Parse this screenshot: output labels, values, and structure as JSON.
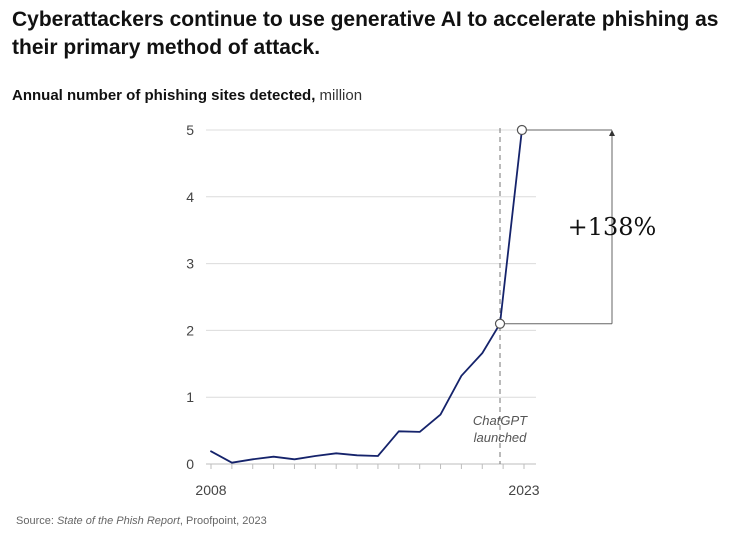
{
  "header": {
    "title": "Cyberattackers continue to use generative AI to accelerate phishing as their primary method of attack.",
    "subtitle_bold": "Annual number of phishing sites detected,",
    "subtitle_unit": " million"
  },
  "source": {
    "prefix": "Source: ",
    "title": "State of the Phish Report",
    "suffix": ", Proofpoint, 2023"
  },
  "colors": {
    "line": "#15236b",
    "grid": "#dcdcdc",
    "axis_text": "#444444",
    "annotation": "#555555",
    "callout_text": "#111111"
  },
  "chart_data": {
    "type": "line",
    "title": "Annual number of phishing sites detected",
    "unit": "million",
    "xlabel": "",
    "ylabel": "",
    "grid": true,
    "ylim": [
      0,
      5
    ],
    "yticks": [
      0,
      1,
      2,
      3,
      4,
      5
    ],
    "xlim": [
      2008,
      2023
    ],
    "xtick_labels": [
      {
        "x": 2008,
        "label": "2008"
      },
      {
        "x": 2023,
        "label": "2023"
      }
    ],
    "series": [
      {
        "name": "Phishing sites detected",
        "points": [
          {
            "x": 2008.0,
            "y": 0.19
          },
          {
            "x": 2009.0,
            "y": 0.02
          },
          {
            "x": 2010.0,
            "y": 0.07
          },
          {
            "x": 2011.0,
            "y": 0.11
          },
          {
            "x": 2012.0,
            "y": 0.07
          },
          {
            "x": 2013.0,
            "y": 0.12
          },
          {
            "x": 2014.0,
            "y": 0.16
          },
          {
            "x": 2015.0,
            "y": 0.13
          },
          {
            "x": 2016.0,
            "y": 0.12
          },
          {
            "x": 2017.0,
            "y": 0.49
          },
          {
            "x": 2018.0,
            "y": 0.48
          },
          {
            "x": 2019.0,
            "y": 0.74
          },
          {
            "x": 2020.0,
            "y": 1.32
          },
          {
            "x": 2021.0,
            "y": 1.66
          },
          {
            "x": 2021.85,
            "y": 2.1
          },
          {
            "x": 2022.9,
            "y": 5.0
          }
        ]
      }
    ],
    "highlight_points": [
      {
        "x": 2021.85,
        "y": 2.1
      },
      {
        "x": 2022.9,
        "y": 5.0
      }
    ],
    "annotations": {
      "event_x": 2021.85,
      "event_label_line1": "ChatGPT",
      "event_label_line2": "launched",
      "change_label": "+138%",
      "change_from": 2.1,
      "change_to": 5.0
    }
  }
}
